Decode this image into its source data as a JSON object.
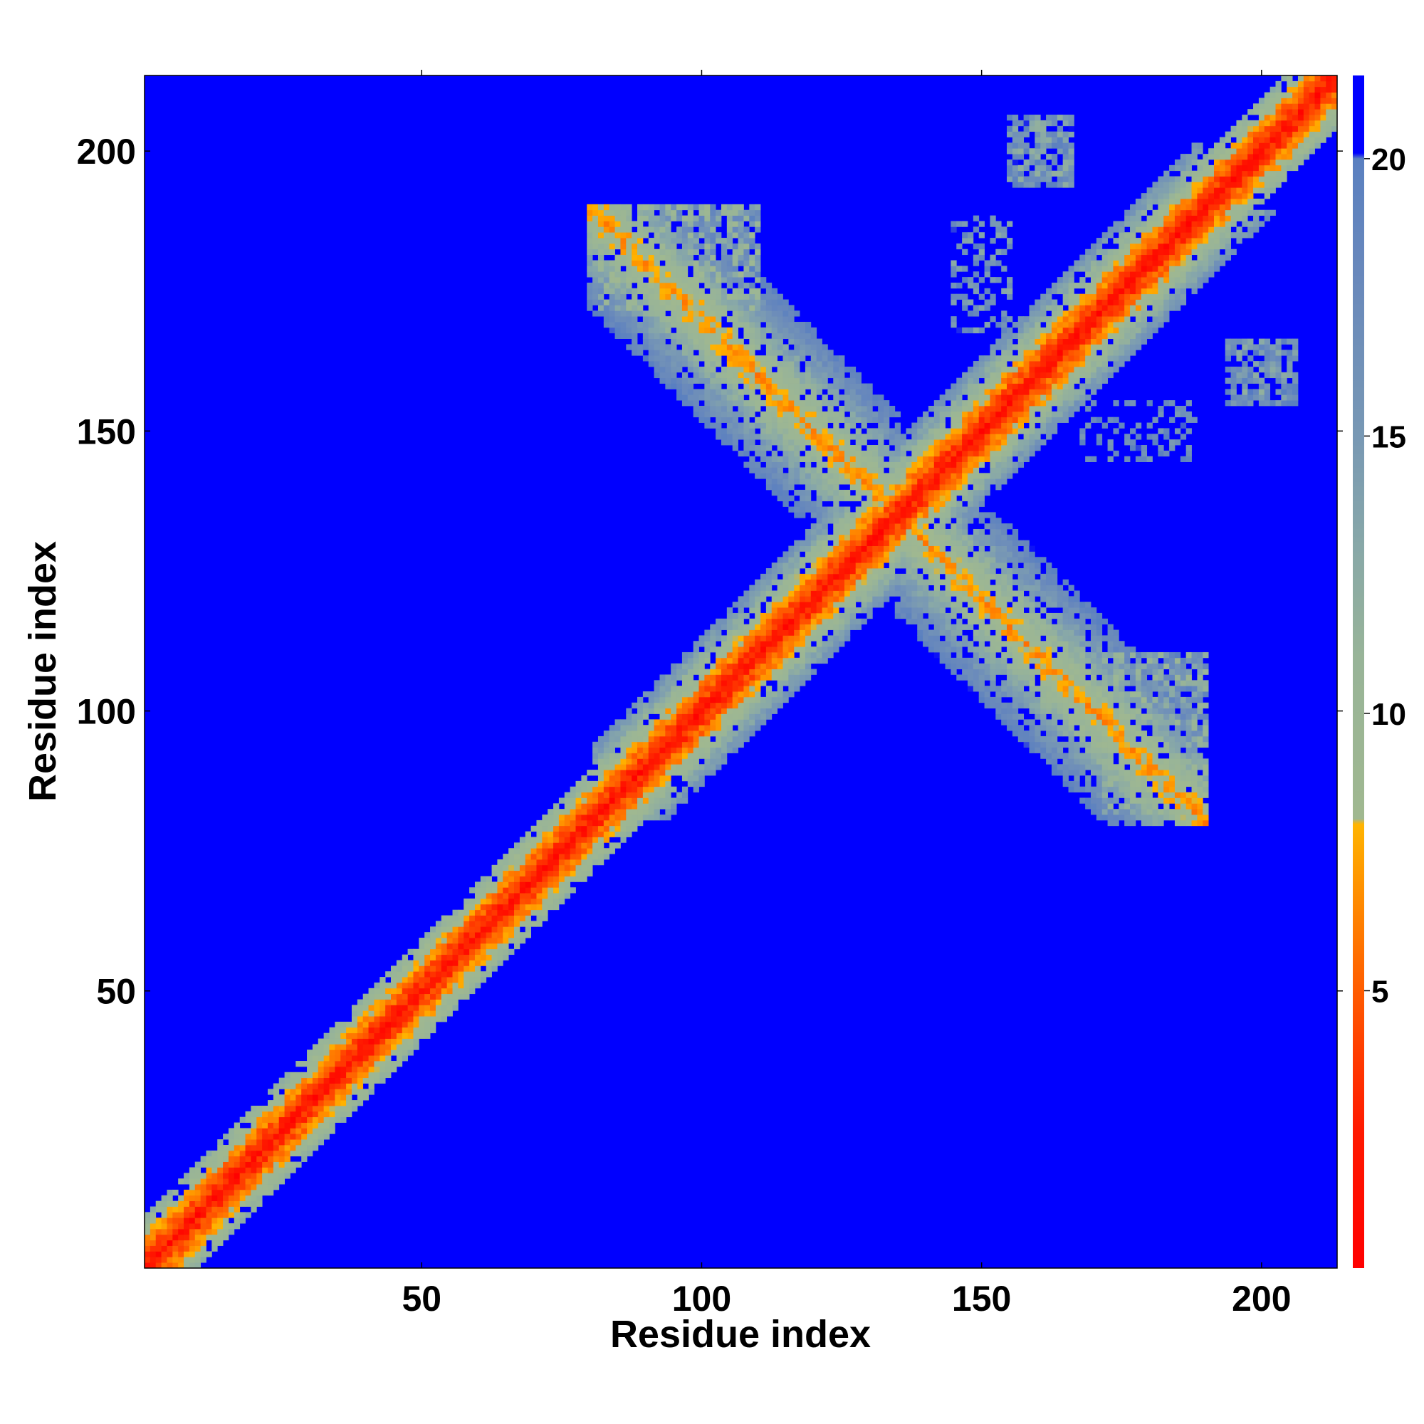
{
  "chart_data": {
    "type": "heatmap",
    "title": "",
    "xlabel": "Residue index",
    "ylabel": "Residue index",
    "n_residues": 213,
    "xlim": [
      1,
      213
    ],
    "ylim": [
      1,
      213
    ],
    "x_ticks": [
      50,
      100,
      150,
      200
    ],
    "y_ticks": [
      50,
      100,
      150,
      200
    ],
    "grid": false,
    "description_of_values": "pairwise distance map; symmetric about the diagonal; values capped at the colorbar max",
    "colorbar": {
      "position": "right",
      "min": 0,
      "max": 21.5,
      "ticks": [
        5,
        10,
        15,
        20
      ],
      "stops": [
        {
          "value": 0,
          "color": "#ff0000"
        },
        {
          "value": 2.5,
          "color": "#ff1a00"
        },
        {
          "value": 4.0,
          "color": "#ff4000"
        },
        {
          "value": 5.5,
          "color": "#ff6a00"
        },
        {
          "value": 7.0,
          "color": "#ff9600"
        },
        {
          "value": 8.0,
          "color": "#ffb400"
        },
        {
          "value": 8.1,
          "color": "#a0b890"
        },
        {
          "value": 11.0,
          "color": "#98b498"
        },
        {
          "value": 13.0,
          "color": "#88a8a8"
        },
        {
          "value": 15.0,
          "color": "#7898b4"
        },
        {
          "value": 18.0,
          "color": "#6888bc"
        },
        {
          "value": 20.0,
          "color": "#5a80c0"
        },
        {
          "value": 20.1,
          "color": "#0000ff"
        },
        {
          "value": 21.5,
          "color": "#0000ff"
        }
      ]
    },
    "regions": [
      {
        "name": "diagonal band",
        "i_range": [
          1,
          213
        ],
        "j_offset_range": [
          -14,
          14
        ]
      },
      {
        "name": "anti-diagonal contact arm",
        "i_range": [
          80,
          190
        ],
        "j_equals_approx": "270 - i"
      },
      {
        "name": "contact patch",
        "i_range": [
          80,
          110
        ],
        "j_range": [
          175,
          190
        ]
      },
      {
        "name": "contact patch",
        "i_range": [
          175,
          190
        ],
        "j_range": [
          80,
          110
        ]
      },
      {
        "name": "contact patch",
        "i_range": [
          155,
          165
        ],
        "j_range": [
          195,
          205
        ]
      },
      {
        "name": "contact patch",
        "i_range": [
          195,
          205
        ],
        "j_range": [
          155,
          165
        ]
      }
    ]
  }
}
